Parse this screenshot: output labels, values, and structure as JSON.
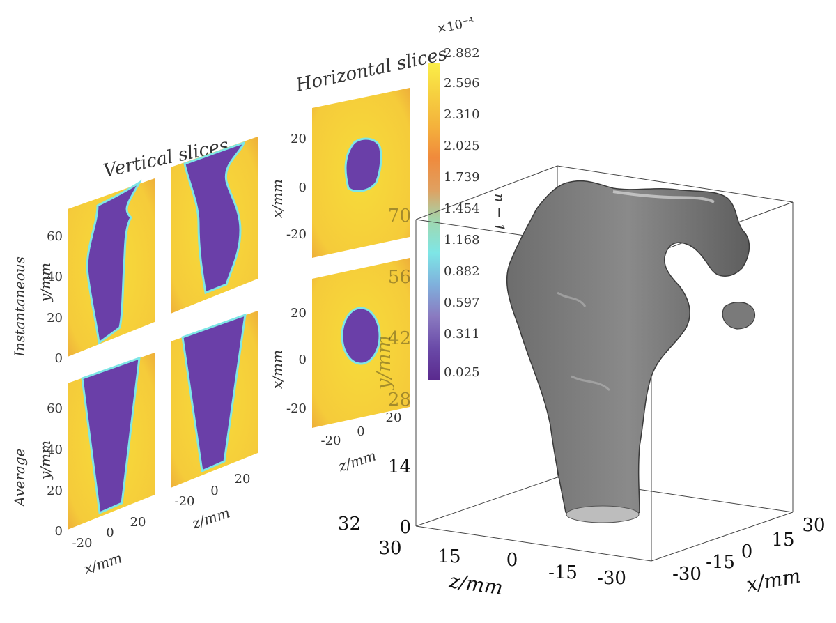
{
  "vertical": {
    "title": "Vertical slices",
    "row_labels": [
      "Instantaneous",
      "Average"
    ],
    "y_label": "y/mm",
    "y_ticks": [
      "0",
      "20",
      "40",
      "60"
    ],
    "x_ticks": [
      "-20",
      "0",
      "20"
    ],
    "x_label_left": "x/mm",
    "x_label_right": "z/mm"
  },
  "horizontal": {
    "title": "Horizontal slices",
    "y_label": "x/mm",
    "y_ticks": [
      "20",
      "0",
      "-20"
    ],
    "x_ticks": [
      "-20",
      "0",
      "20"
    ],
    "x_label": "z/mm"
  },
  "colorbar": {
    "exponent": "×10⁻⁴",
    "label": "n − 1",
    "ticks": [
      "2.882",
      "2.596",
      "2.310",
      "2.025",
      "1.739",
      "1.454",
      "1.168",
      "0.882",
      "0.597",
      "0.311",
      "0.025"
    ]
  },
  "volume": {
    "y_label": "y/mm",
    "y_ticks": [
      "0",
      "14",
      "28",
      "42",
      "56",
      "70"
    ],
    "corner_tick": "32",
    "z_ticks": [
      "30",
      "15",
      "0",
      "-15",
      "-30"
    ],
    "z_label": "z/mm",
    "x_ticks": [
      "-30",
      "-15",
      "0",
      "15",
      "30"
    ],
    "x_label": "x/mm"
  }
}
